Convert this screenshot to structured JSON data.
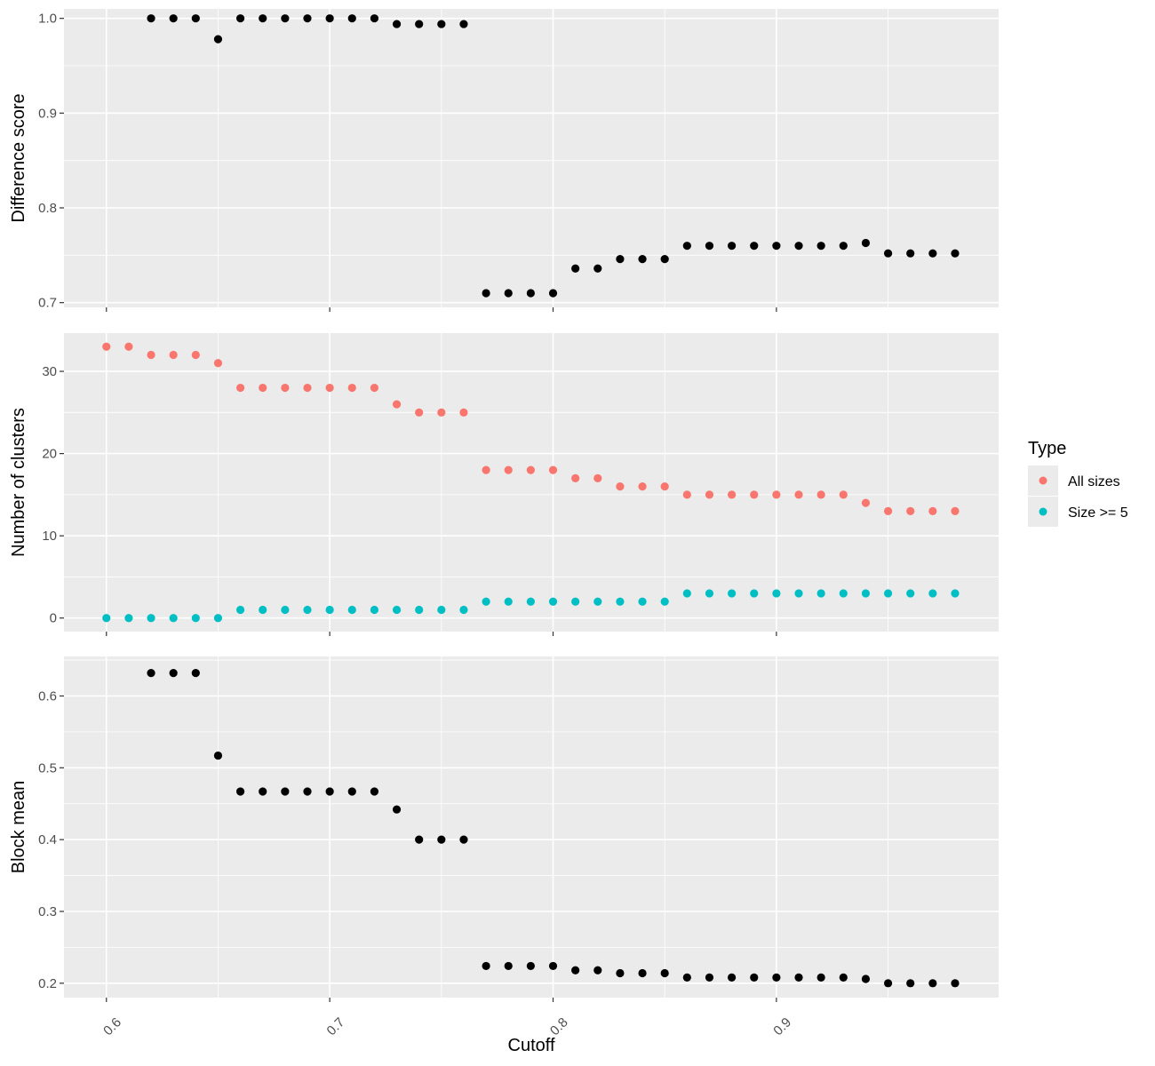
{
  "chart_data": [
    {
      "type": "scatter",
      "ylabel": "Difference score",
      "ylim": [
        0.695,
        1.01
      ],
      "yticks": [
        0.7,
        0.8,
        0.9,
        1.0
      ],
      "ytick_labels": [
        "0.7",
        "0.8",
        "0.9",
        "1.0"
      ],
      "series": [
        {
          "color": "#000000",
          "x": [
            0.62,
            0.63,
            0.64,
            0.65,
            0.66,
            0.67,
            0.68,
            0.69,
            0.7,
            0.71,
            0.72,
            0.73,
            0.74,
            0.75,
            0.76,
            0.77,
            0.78,
            0.79,
            0.8,
            0.81,
            0.82,
            0.83,
            0.84,
            0.85,
            0.86,
            0.87,
            0.88,
            0.89,
            0.9,
            0.91,
            0.92,
            0.93,
            0.94,
            0.95,
            0.96,
            0.97,
            0.98
          ],
          "y": [
            1.0,
            1.0,
            1.0,
            0.978,
            1.0,
            1.0,
            1.0,
            1.0,
            1.0,
            1.0,
            1.0,
            0.994,
            0.994,
            0.994,
            0.994,
            0.71,
            0.71,
            0.71,
            0.71,
            0.736,
            0.736,
            0.746,
            0.746,
            0.746,
            0.76,
            0.76,
            0.76,
            0.76,
            0.76,
            0.76,
            0.76,
            0.76,
            0.763,
            0.752,
            0.752,
            0.752,
            0.752
          ]
        }
      ]
    },
    {
      "type": "scatter",
      "ylabel": "Number of clusters",
      "ylim": [
        -1.65,
        34.65
      ],
      "yticks": [
        0,
        10,
        20,
        30
      ],
      "ytick_labels": [
        "0",
        "10",
        "20",
        "30"
      ],
      "series": [
        {
          "name": "All sizes",
          "color": "#F8766D",
          "x": [
            0.6,
            0.61,
            0.62,
            0.63,
            0.64,
            0.65,
            0.66,
            0.67,
            0.68,
            0.69,
            0.7,
            0.71,
            0.72,
            0.73,
            0.74,
            0.75,
            0.76,
            0.77,
            0.78,
            0.79,
            0.8,
            0.81,
            0.82,
            0.83,
            0.84,
            0.85,
            0.86,
            0.87,
            0.88,
            0.89,
            0.9,
            0.91,
            0.92,
            0.93,
            0.94,
            0.95,
            0.96,
            0.97,
            0.98
          ],
          "y": [
            33,
            33,
            32,
            32,
            32,
            31,
            28,
            28,
            28,
            28,
            28,
            28,
            28,
            26,
            25,
            25,
            25,
            18,
            18,
            18,
            18,
            17,
            17,
            16,
            16,
            16,
            15,
            15,
            15,
            15,
            15,
            15,
            15,
            15,
            14,
            13,
            13,
            13,
            13
          ]
        },
        {
          "name": "Size >= 5",
          "color": "#00BFC4",
          "x": [
            0.6,
            0.61,
            0.62,
            0.63,
            0.64,
            0.65,
            0.66,
            0.67,
            0.68,
            0.69,
            0.7,
            0.71,
            0.72,
            0.73,
            0.74,
            0.75,
            0.76,
            0.77,
            0.78,
            0.79,
            0.8,
            0.81,
            0.82,
            0.83,
            0.84,
            0.85,
            0.86,
            0.87,
            0.88,
            0.89,
            0.9,
            0.91,
            0.92,
            0.93,
            0.94,
            0.95,
            0.96,
            0.97,
            0.98
          ],
          "y": [
            0,
            0,
            0,
            0,
            0,
            0,
            1,
            1,
            1,
            1,
            1,
            1,
            1,
            1,
            1,
            1,
            1,
            2,
            2,
            2,
            2,
            2,
            2,
            2,
            2,
            2,
            3,
            3,
            3,
            3,
            3,
            3,
            3,
            3,
            3,
            3,
            3,
            3,
            3
          ]
        }
      ]
    },
    {
      "type": "scatter",
      "ylabel": "Block mean",
      "ylim": [
        0.18,
        0.655
      ],
      "yticks": [
        0.2,
        0.3,
        0.4,
        0.5,
        0.6
      ],
      "ytick_labels": [
        "0.2",
        "0.3",
        "0.4",
        "0.5",
        "0.6"
      ],
      "series": [
        {
          "color": "#000000",
          "x": [
            0.62,
            0.63,
            0.64,
            0.65,
            0.66,
            0.67,
            0.68,
            0.69,
            0.7,
            0.71,
            0.72,
            0.73,
            0.74,
            0.75,
            0.76,
            0.77,
            0.78,
            0.79,
            0.8,
            0.81,
            0.82,
            0.83,
            0.84,
            0.85,
            0.86,
            0.87,
            0.88,
            0.89,
            0.9,
            0.91,
            0.92,
            0.93,
            0.94,
            0.95,
            0.96,
            0.97,
            0.98
          ],
          "y": [
            0.632,
            0.632,
            0.632,
            0.517,
            0.467,
            0.467,
            0.467,
            0.467,
            0.467,
            0.467,
            0.467,
            0.442,
            0.4,
            0.4,
            0.4,
            0.224,
            0.224,
            0.224,
            0.224,
            0.218,
            0.218,
            0.214,
            0.214,
            0.214,
            0.208,
            0.208,
            0.208,
            0.208,
            0.208,
            0.208,
            0.208,
            0.208,
            0.206,
            0.2,
            0.2,
            0.2,
            0.2
          ]
        }
      ]
    }
  ],
  "x_axis": {
    "xlabel": "Cutoff",
    "xlim": [
      0.581,
      0.9995
    ],
    "xticks": [
      0.6,
      0.7,
      0.8,
      0.9
    ],
    "xtick_labels": [
      "0.6",
      "0.7",
      "0.8",
      "0.9"
    ]
  },
  "legend": {
    "title": "Type",
    "placement": "right",
    "items": [
      {
        "label": "All sizes",
        "color": "#F8766D"
      },
      {
        "label": "Size >= 5",
        "color": "#00BFC4"
      }
    ]
  },
  "colors": {
    "panel_background": "#EBEBEB",
    "grid_major": "#FFFFFF"
  }
}
